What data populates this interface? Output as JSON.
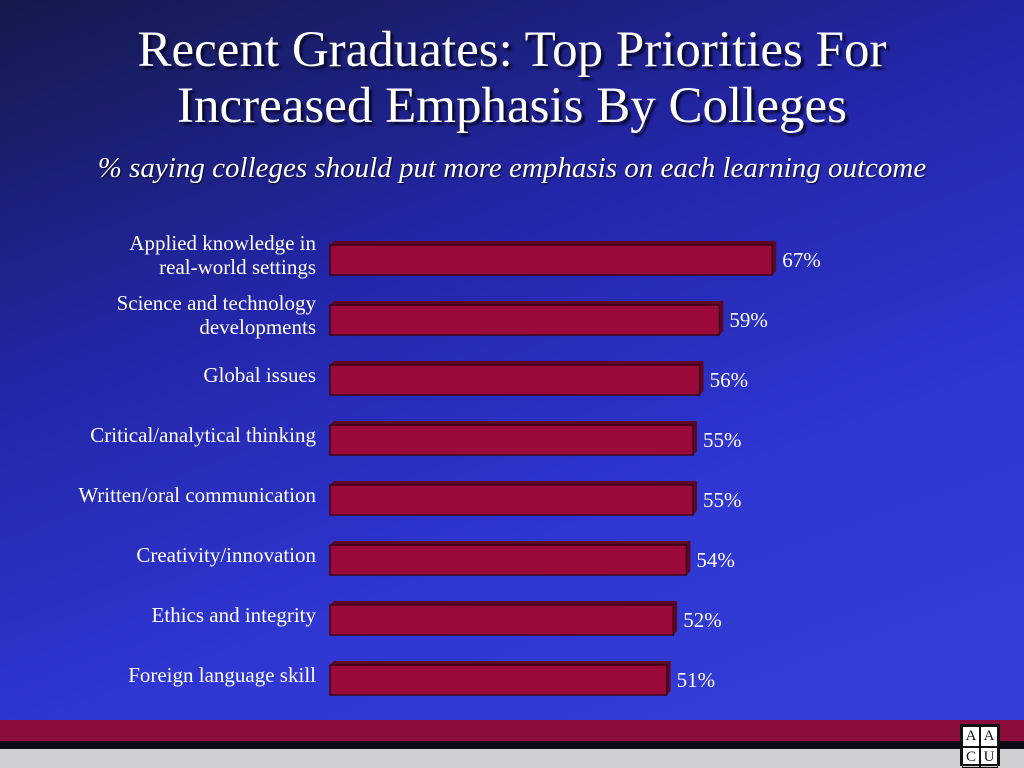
{
  "title_line1": "Recent Graduates: Top Priorities For",
  "title_line2": "Increased Emphasis By Colleges",
  "subtitle": "% saying colleges should put more emphasis on each learning outcome",
  "logo": {
    "letters": [
      "A",
      "A",
      "C",
      "U"
    ]
  },
  "colors": {
    "bar": "#9c0a3c",
    "bar_edge": "#3a0418",
    "bar_side": "#5e0624"
  },
  "chart_data": {
    "type": "bar",
    "orientation": "horizontal",
    "title": "Recent Graduates: Top Priorities For Increased Emphasis By Colleges",
    "subtitle": "% saying colleges should put more emphasis on each learning outcome",
    "categories": [
      [
        "Applied knowledge in",
        "real-world settings"
      ],
      [
        "Science and technology",
        "developments"
      ],
      [
        "Global issues"
      ],
      [
        "Critical/analytical thinking"
      ],
      [
        "Written/oral communication"
      ],
      [
        "Creativity/innovation"
      ],
      [
        "Ethics and integrity"
      ],
      [
        "Foreign language skill"
      ]
    ],
    "values": [
      67,
      59,
      56,
      55,
      55,
      54,
      52,
      51
    ],
    "value_labels": [
      "67%",
      "59%",
      "56%",
      "55%",
      "55%",
      "54%",
      "52%",
      "51%"
    ],
    "grid": false,
    "legend": "none"
  }
}
